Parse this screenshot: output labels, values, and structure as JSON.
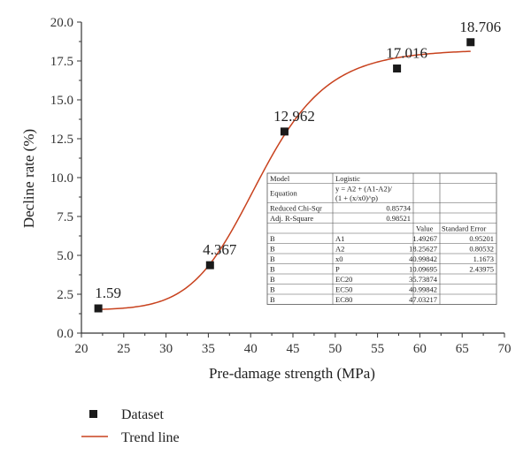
{
  "colors": {
    "marker": "#1a1a1a",
    "trend": "#c8421e",
    "axis": "#333333",
    "table_border": "#555555"
  },
  "chart_data": {
    "type": "scatter",
    "xlabel": "Pre-damage strength (MPa)",
    "ylabel": "Decline rate (%)",
    "xlim": [
      20,
      70
    ],
    "ylim": [
      0,
      20
    ],
    "x_ticks": [
      "20",
      "25",
      "30",
      "35",
      "40",
      "45",
      "50",
      "55",
      "60",
      "65",
      "70"
    ],
    "y_ticks": [
      "0.0",
      "2.5",
      "5.0",
      "7.5",
      "10.0",
      "12.5",
      "15.0",
      "17.5",
      "20.0"
    ],
    "series": [
      {
        "name": "Dataset",
        "kind": "scatter",
        "x": [
          22.0,
          35.2,
          44.0,
          57.3,
          66.0
        ],
        "y": [
          1.59,
          4.367,
          12.962,
          17.016,
          18.706
        ],
        "labels": [
          "1.59",
          "4.367",
          "12.962",
          "17.016",
          "18.706"
        ]
      },
      {
        "name": "Trend line",
        "kind": "line",
        "model": "logistic",
        "A1": 1.49267,
        "A2": 18.25627,
        "x0": 40.99842,
        "p": 10.09695,
        "x_range": [
          22,
          66
        ]
      }
    ],
    "legend": {
      "placement": "bottom-left",
      "items": [
        "Dataset",
        "Trend line"
      ]
    },
    "fit_table": {
      "model_label": "Model",
      "model_value": "Logistic",
      "equation_label": "Equation",
      "equation_lines": [
        "y = A2 + (A1-A2)/",
        "(1 + (x/x0)^p)"
      ],
      "chisq_label": "Reduced Chi-Sqr",
      "chisq_value": "0.85734",
      "adjr_label": "Adj. R-Square",
      "adjr_value": "0.98521",
      "col_value": "Value",
      "col_error": "Standard Error",
      "rows": [
        {
          "b": "B",
          "param": "A1",
          "value": "1.49267",
          "error": "0.95201"
        },
        {
          "b": "B",
          "param": "A2",
          "value": "18.25627",
          "error": "0.80532"
        },
        {
          "b": "B",
          "param": "x0",
          "value": "40.99842",
          "error": "1.1673"
        },
        {
          "b": "B",
          "param": "P",
          "value": "10.09695",
          "error": "2.43975"
        },
        {
          "b": "B",
          "param": "EC20",
          "value": "35.73874",
          "error": ""
        },
        {
          "b": "B",
          "param": "EC50",
          "value": "40.99842",
          "error": ""
        },
        {
          "b": "B",
          "param": "EC80",
          "value": "47.03217",
          "error": ""
        }
      ]
    }
  }
}
